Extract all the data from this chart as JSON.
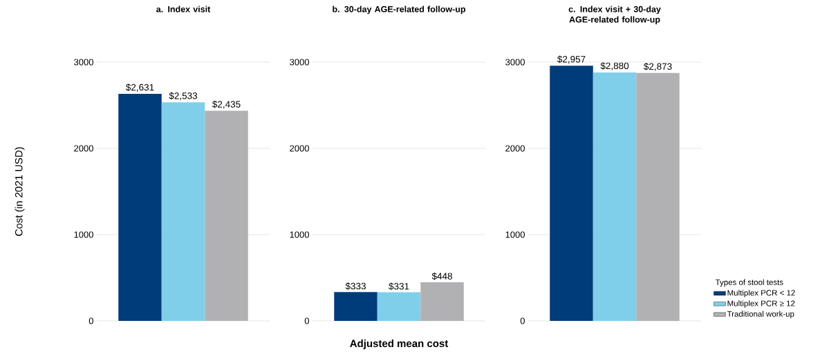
{
  "chart_data": [
    {
      "type": "bar",
      "title": "a. Index visit",
      "ylabel": "Cost (in 2021 USD)",
      "categories": [
        null
      ],
      "ylim": [
        0,
        3000
      ],
      "yticks": [
        0,
        1000,
        2000,
        3000
      ],
      "grid": "y",
      "tick_labels": "y",
      "series": [
        {
          "color": "#003b7a",
          "values": [
            2631
          ],
          "value_labels": [
            "$2,631"
          ]
        },
        {
          "color": "#80cfea",
          "values": [
            2533
          ],
          "value_labels": [
            "$2,533"
          ]
        },
        {
          "color": "#b1b1b3",
          "values": [
            2435
          ],
          "value_labels": [
            "$2,435"
          ]
        }
      ]
    },
    {
      "type": "bar",
      "title": "b. 30-day AGE-related follow-up",
      "xlabel": "Adjusted mean cost",
      "categories": [
        null
      ],
      "ylim": [
        0,
        3000
      ],
      "yticks": [
        0,
        1000,
        2000,
        3000
      ],
      "grid": "y",
      "tick_labels": "y",
      "series": [
        {
          "color": "#003b7a",
          "values": [
            333
          ],
          "value_labels": [
            "$333"
          ]
        },
        {
          "color": "#80cfea",
          "values": [
            331
          ],
          "value_labels": [
            "$331"
          ]
        },
        {
          "color": "#b1b1b3",
          "values": [
            448
          ],
          "value_labels": [
            "$448"
          ]
        }
      ]
    },
    {
      "type": "bar",
      "title": "c. Index visit + 30-day AGE-related follow-up",
      "legend_title": "Types of stool tests",
      "legend": "right",
      "categories": [
        null
      ],
      "ylim": [
        0,
        3000
      ],
      "yticks": [
        0,
        1000,
        2000,
        3000
      ],
      "grid": "y",
      "tick_labels": "y",
      "series": [
        {
          "name": "Multiplex PCR < 12",
          "color": "#003b7a",
          "values": [
            2957
          ],
          "value_labels": [
            "$2,957"
          ]
        },
        {
          "name": "Multiplex PCR ≥ 12",
          "color": "#80cfea",
          "values": [
            2880
          ],
          "value_labels": [
            "$2,880"
          ]
        },
        {
          "name": "Traditional work-up",
          "color": "#b1b1b3",
          "values": [
            2873
          ],
          "value_labels": [
            "$2,873"
          ]
        }
      ]
    }
  ]
}
